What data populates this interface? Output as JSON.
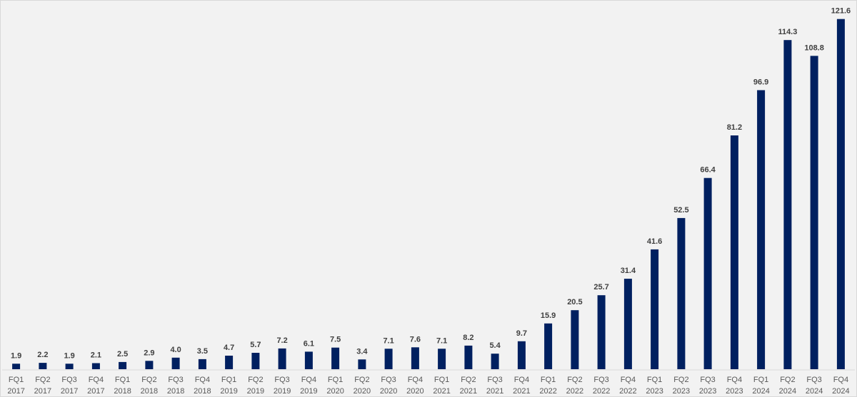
{
  "chart_data": {
    "type": "bar",
    "title": "",
    "xlabel": "",
    "ylabel": "",
    "ylim": [
      0,
      130
    ],
    "grid": false,
    "legend": "none",
    "bar_color": "#002060",
    "categories": [
      [
        "FQ1",
        "2017"
      ],
      [
        "FQ2",
        "2017"
      ],
      [
        "FQ3",
        "2017"
      ],
      [
        "FQ4",
        "2017"
      ],
      [
        "FQ1",
        "2018"
      ],
      [
        "FQ2",
        "2018"
      ],
      [
        "FQ3",
        "2018"
      ],
      [
        "FQ4",
        "2018"
      ],
      [
        "FQ1",
        "2019"
      ],
      [
        "FQ2",
        "2019"
      ],
      [
        "FQ3",
        "2019"
      ],
      [
        "FQ4",
        "2019"
      ],
      [
        "FQ1",
        "2020"
      ],
      [
        "FQ2",
        "2020"
      ],
      [
        "FQ3",
        "2020"
      ],
      [
        "FQ4",
        "2020"
      ],
      [
        "FQ1",
        "2021"
      ],
      [
        "FQ2",
        "2021"
      ],
      [
        "FQ3",
        "2021"
      ],
      [
        "FQ4",
        "2021"
      ],
      [
        "FQ1",
        "2022"
      ],
      [
        "FQ2",
        "2022"
      ],
      [
        "FQ3",
        "2022"
      ],
      [
        "FQ4",
        "2022"
      ],
      [
        "FQ1",
        "2023"
      ],
      [
        "FQ2",
        "2023"
      ],
      [
        "FQ3",
        "2023"
      ],
      [
        "FQ4",
        "2023"
      ],
      [
        "FQ1",
        "2024"
      ],
      [
        "FQ2",
        "2024"
      ],
      [
        "FQ3",
        "2024"
      ],
      [
        "FQ4",
        "2024"
      ]
    ],
    "values": [
      1.9,
      2.2,
      1.9,
      2.1,
      2.5,
      2.9,
      4.0,
      3.5,
      4.7,
      5.7,
      7.2,
      6.1,
      7.5,
      3.4,
      7.1,
      7.6,
      7.1,
      8.2,
      5.4,
      9.7,
      15.9,
      20.5,
      25.7,
      31.4,
      41.6,
      52.5,
      66.4,
      81.2,
      96.9,
      114.3,
      108.8,
      121.6
    ],
    "data_labels": [
      "1.9",
      "2.2",
      "1.9",
      "2.1",
      "2.5",
      "2.9",
      "4.0",
      "3.5",
      "4.7",
      "5.7",
      "7.2",
      "6.1",
      "7.5",
      "3.4",
      "7.1",
      "7.6",
      "7.1",
      "8.2",
      "5.4",
      "9.7",
      "15.9",
      "20.5",
      "25.7",
      "31.4",
      "41.6",
      "52.5",
      "66.4",
      "81.2",
      "96.9",
      "114.3",
      "108.8",
      "121.6"
    ]
  }
}
